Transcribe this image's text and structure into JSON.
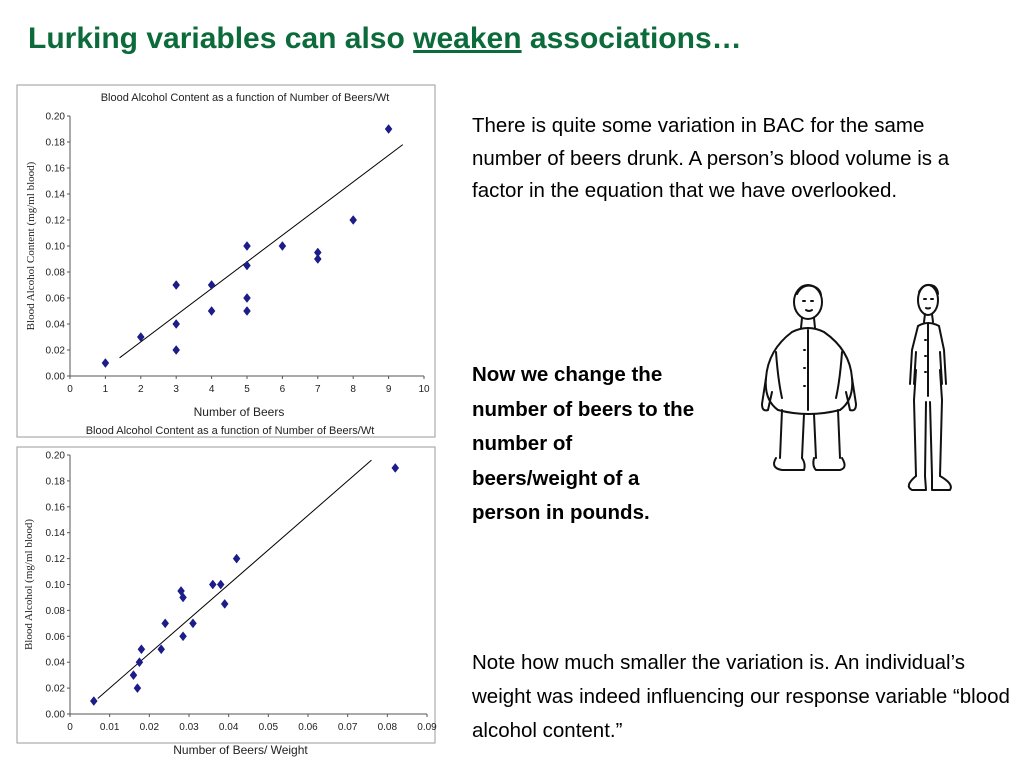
{
  "slide": {
    "title_prefix": "Lurking variables can also ",
    "title_emphasis": "weaken",
    "title_suffix": " associations…",
    "paragraph_1": "There is quite some variation in BAC for the same number of beers drunk. A person’s blood volume is a factor in the equation that we have overlooked.",
    "paragraph_2": "Now we change the number of beers to the number of beers/weight of a person in pounds.",
    "paragraph_3": "Note how much smaller the variation is. An individual’s weight was indeed influencing our response variable “blood alcohol content.”",
    "colors": {
      "title": "#0b6b3a",
      "points": "#1c1c8a",
      "text": "#000000"
    },
    "figures": [
      "heavy-man-drawing",
      "thin-man-drawing"
    ]
  },
  "chart_data": [
    {
      "type": "scatter",
      "title": "Blood Alcohol Content as a function of Number of Beers/Wt",
      "xlabel": "Number of Beers",
      "ylabel": "Blood Alcohol Content (mg/ml blood)",
      "xlim": [
        0,
        10
      ],
      "ylim": [
        0,
        0.2
      ],
      "xticks": [
        "0",
        "1",
        "2",
        "3",
        "4",
        "5",
        "6",
        "7",
        "8",
        "9",
        "10"
      ],
      "yticks": [
        "0.00",
        "0.02",
        "0.04",
        "0.06",
        "0.08",
        "0.10",
        "0.12",
        "0.14",
        "0.16",
        "0.18",
        "0.20"
      ],
      "grid": false,
      "points": [
        {
          "x": 1,
          "y": 0.01
        },
        {
          "x": 2,
          "y": 0.03
        },
        {
          "x": 3,
          "y": 0.07
        },
        {
          "x": 3,
          "y": 0.04
        },
        {
          "x": 3,
          "y": 0.02
        },
        {
          "x": 4,
          "y": 0.07
        },
        {
          "x": 4,
          "y": 0.05
        },
        {
          "x": 5,
          "y": 0.1
        },
        {
          "x": 5,
          "y": 0.085
        },
        {
          "x": 5,
          "y": 0.06
        },
        {
          "x": 5,
          "y": 0.05
        },
        {
          "x": 6,
          "y": 0.1
        },
        {
          "x": 7,
          "y": 0.095
        },
        {
          "x": 7,
          "y": 0.09
        },
        {
          "x": 8,
          "y": 0.12
        },
        {
          "x": 9,
          "y": 0.19
        }
      ],
      "trendline": [
        {
          "x": 1.4,
          "y": 0.014
        },
        {
          "x": 9.4,
          "y": 0.178
        }
      ]
    },
    {
      "type": "scatter",
      "title": "Blood Alcohol Content as a function of Number of Beers/Wt",
      "xlabel": "Number of Beers/ Weight",
      "ylabel": "Blood Alcohol (mg/ml blood)",
      "xlim": [
        0,
        0.09
      ],
      "ylim": [
        0,
        0.2
      ],
      "xticks": [
        "0",
        "0.01",
        "0.02",
        "0.03",
        "0.04",
        "0.05",
        "0.06",
        "0.07",
        "0.08",
        "0.09"
      ],
      "yticks": [
        "0.00",
        "0.02",
        "0.04",
        "0.06",
        "0.08",
        "0.10",
        "0.12",
        "0.14",
        "0.16",
        "0.18",
        "0.20"
      ],
      "grid": false,
      "points": [
        {
          "x": 0.006,
          "y": 0.01
        },
        {
          "x": 0.016,
          "y": 0.03
        },
        {
          "x": 0.017,
          "y": 0.02
        },
        {
          "x": 0.0175,
          "y": 0.04
        },
        {
          "x": 0.018,
          "y": 0.05
        },
        {
          "x": 0.023,
          "y": 0.05
        },
        {
          "x": 0.024,
          "y": 0.07
        },
        {
          "x": 0.028,
          "y": 0.095
        },
        {
          "x": 0.0285,
          "y": 0.09
        },
        {
          "x": 0.0285,
          "y": 0.06
        },
        {
          "x": 0.031,
          "y": 0.07
        },
        {
          "x": 0.036,
          "y": 0.1
        },
        {
          "x": 0.038,
          "y": 0.1
        },
        {
          "x": 0.039,
          "y": 0.085
        },
        {
          "x": 0.042,
          "y": 0.12
        },
        {
          "x": 0.082,
          "y": 0.19
        }
      ],
      "trendline": [
        {
          "x": 0.007,
          "y": 0.012
        },
        {
          "x": 0.076,
          "y": 0.196
        }
      ]
    }
  ]
}
